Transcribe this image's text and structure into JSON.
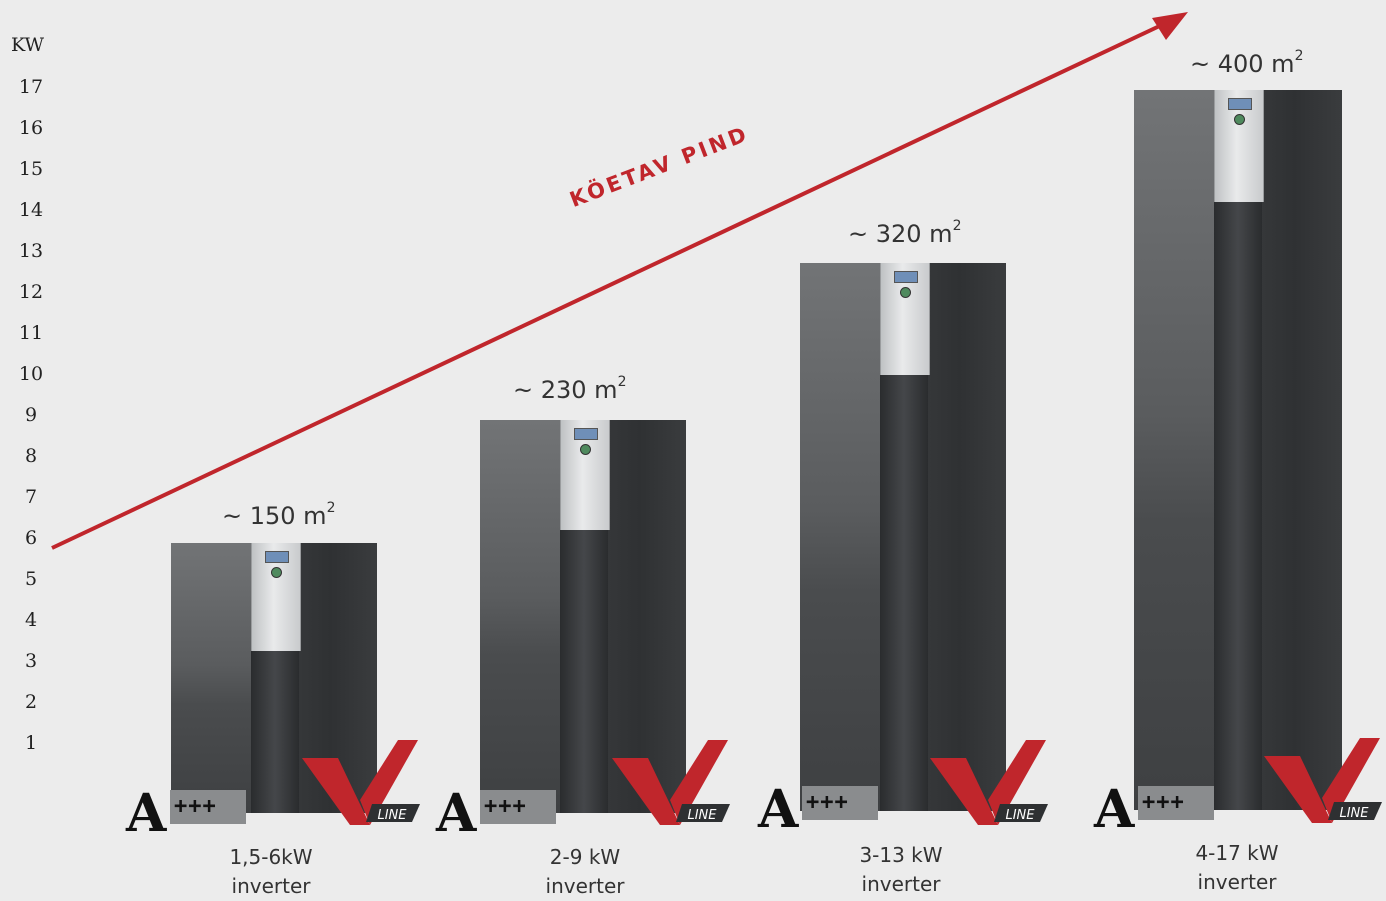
{
  "axis": {
    "unit": "KW",
    "ticks": [
      "17",
      "16",
      "15",
      "14",
      "13",
      "12",
      "11",
      "10",
      "9",
      "8",
      "7",
      "6",
      "5",
      "4",
      "3",
      "2",
      "1"
    ]
  },
  "arrow": {
    "label": "KÖETAV PIND",
    "color": "#c0262c"
  },
  "products": [
    {
      "area": "~ 150 m",
      "area_sup": "2",
      "power": "1,5-6kW",
      "type": "inverter",
      "rating": "A",
      "rating_plus": "+++",
      "brand": "LINE"
    },
    {
      "area": "~ 230 m",
      "area_sup": "2",
      "power": "2-9 kW",
      "type": "inverter",
      "rating": "A",
      "rating_plus": "+++",
      "brand": "LINE"
    },
    {
      "area": "~ 320 m",
      "area_sup": "2",
      "power": "3-13 kW",
      "type": "inverter",
      "rating": "A",
      "rating_plus": "+++",
      "brand": "LINE"
    },
    {
      "area": "~ 400 m",
      "area_sup": "2",
      "power": "4-17 kW",
      "type": "inverter",
      "rating": "A",
      "rating_plus": "+++",
      "brand": "LINE"
    }
  ],
  "colors": {
    "background": "#ececec",
    "accent": "#c0262c",
    "unit_body": "#4a4c4e"
  }
}
